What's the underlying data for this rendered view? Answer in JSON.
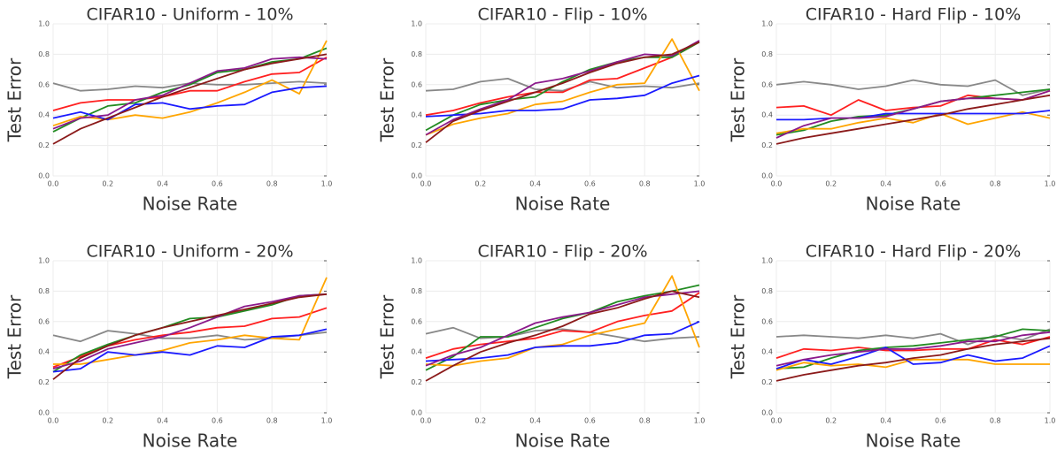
{
  "chart_data": [
    {
      "type": "line",
      "title": "CIFAR10 - Uniform - 10%",
      "xlabel": "Noise Rate",
      "ylabel": "Test Error",
      "x": [
        0,
        0.1,
        0.2,
        0.3,
        0.4,
        0.5,
        0.6,
        0.7,
        0.8,
        0.9,
        1.0
      ],
      "xlim": [
        0,
        1
      ],
      "ylim": [
        0,
        1
      ],
      "grid": true,
      "xticks": [
        {
          "value": 0,
          "label": "0.0"
        },
        {
          "value": 0.2,
          "label": "0.2"
        },
        {
          "value": 0.4,
          "label": "0.4"
        },
        {
          "value": 0.6,
          "label": "0.6"
        },
        {
          "value": 0.8,
          "label": "0.8"
        },
        {
          "value": 1,
          "label": "1.0"
        }
      ],
      "yticks": [
        {
          "value": 0,
          "label": "0.0"
        },
        {
          "value": 0.2,
          "label": "0.2"
        },
        {
          "value": 0.4,
          "label": "0.4"
        },
        {
          "value": 0.6,
          "label": "0.6"
        },
        {
          "value": 0.8,
          "label": "0.8"
        },
        {
          "value": 1,
          "label": "1.0"
        }
      ],
      "series": [
        {
          "color": "#888888",
          "values": [
            0.61,
            0.56,
            0.57,
            0.59,
            0.58,
            0.61,
            0.6,
            0.6,
            0.61,
            0.62,
            0.61
          ]
        },
        {
          "color": "#ff2020",
          "values": [
            0.43,
            0.48,
            0.5,
            0.5,
            0.52,
            0.56,
            0.56,
            0.62,
            0.67,
            0.68,
            0.78
          ]
        },
        {
          "color": "#228b22",
          "values": [
            0.29,
            0.38,
            0.46,
            0.48,
            0.55,
            0.6,
            0.68,
            0.7,
            0.75,
            0.77,
            0.84
          ]
        },
        {
          "color": "#ffa500",
          "values": [
            0.33,
            0.39,
            0.37,
            0.4,
            0.38,
            0.42,
            0.48,
            0.55,
            0.63,
            0.54,
            0.89
          ]
        },
        {
          "color": "#1a1aff",
          "values": [
            0.38,
            0.42,
            0.37,
            0.47,
            0.48,
            0.44,
            0.46,
            0.47,
            0.55,
            0.58,
            0.59
          ]
        },
        {
          "color": "#8b1a8b",
          "values": [
            0.31,
            0.38,
            0.4,
            0.5,
            0.53,
            0.61,
            0.69,
            0.71,
            0.77,
            0.78,
            0.77
          ]
        },
        {
          "color": "#8b1a1a",
          "values": [
            0.21,
            0.31,
            0.38,
            0.45,
            0.52,
            0.58,
            0.64,
            0.7,
            0.74,
            0.77,
            0.8
          ]
        }
      ]
    },
    {
      "type": "line",
      "title": "CIFAR10 - Flip - 10%",
      "xlabel": "Noise Rate",
      "ylabel": "Test Error",
      "x": [
        0,
        0.1,
        0.2,
        0.3,
        0.4,
        0.5,
        0.6,
        0.7,
        0.8,
        0.9,
        1.0
      ],
      "xlim": [
        0,
        1
      ],
      "ylim": [
        0,
        1
      ],
      "grid": true,
      "xticks": [
        {
          "value": 0,
          "label": "0.0"
        },
        {
          "value": 0.2,
          "label": "0.2"
        },
        {
          "value": 0.4,
          "label": "0.4"
        },
        {
          "value": 0.6,
          "label": "0.6"
        },
        {
          "value": 0.8,
          "label": "0.8"
        },
        {
          "value": 1,
          "label": "1.0"
        }
      ],
      "yticks": [
        {
          "value": 0,
          "label": "0.0"
        },
        {
          "value": 0.2,
          "label": "0.2"
        },
        {
          "value": 0.4,
          "label": "0.4"
        },
        {
          "value": 0.6,
          "label": "0.6"
        },
        {
          "value": 0.8,
          "label": "0.8"
        },
        {
          "value": 1,
          "label": "1.0"
        }
      ],
      "series": [
        {
          "color": "#888888",
          "values": [
            0.56,
            0.57,
            0.62,
            0.64,
            0.57,
            0.56,
            0.62,
            0.58,
            0.59,
            0.58,
            0.61
          ]
        },
        {
          "color": "#ff2020",
          "values": [
            0.4,
            0.43,
            0.48,
            0.52,
            0.55,
            0.55,
            0.63,
            0.64,
            0.71,
            0.78,
            0.88
          ]
        },
        {
          "color": "#228b22",
          "values": [
            0.3,
            0.4,
            0.47,
            0.5,
            0.52,
            0.62,
            0.7,
            0.75,
            0.78,
            0.78,
            0.88
          ]
        },
        {
          "color": "#ffa500",
          "values": [
            0.27,
            0.34,
            0.38,
            0.41,
            0.47,
            0.49,
            0.55,
            0.6,
            0.61,
            0.9,
            0.56
          ]
        },
        {
          "color": "#1a1aff",
          "values": [
            0.39,
            0.4,
            0.41,
            0.43,
            0.43,
            0.44,
            0.5,
            0.51,
            0.53,
            0.61,
            0.66
          ]
        },
        {
          "color": "#8b1a8b",
          "values": [
            0.27,
            0.37,
            0.44,
            0.5,
            0.61,
            0.64,
            0.69,
            0.75,
            0.8,
            0.79,
            0.89
          ]
        },
        {
          "color": "#8b1a1a",
          "values": [
            0.22,
            0.36,
            0.43,
            0.49,
            0.55,
            0.61,
            0.68,
            0.74,
            0.78,
            0.8,
            0.88
          ]
        }
      ]
    },
    {
      "type": "line",
      "title": "CIFAR10 - Hard Flip - 10%",
      "xlabel": "Noise Rate",
      "ylabel": "Test Error",
      "x": [
        0,
        0.1,
        0.2,
        0.3,
        0.4,
        0.5,
        0.6,
        0.7,
        0.8,
        0.9,
        1.0
      ],
      "xlim": [
        0,
        1
      ],
      "ylim": [
        0,
        1
      ],
      "grid": true,
      "xticks": [
        {
          "value": 0,
          "label": "0.0"
        },
        {
          "value": 0.2,
          "label": "0.2"
        },
        {
          "value": 0.4,
          "label": "0.4"
        },
        {
          "value": 0.6,
          "label": "0.6"
        },
        {
          "value": 0.8,
          "label": "0.8"
        },
        {
          "value": 1,
          "label": "1.0"
        }
      ],
      "yticks": [
        {
          "value": 0,
          "label": "0.0"
        },
        {
          "value": 0.2,
          "label": "0.2"
        },
        {
          "value": 0.4,
          "label": "0.4"
        },
        {
          "value": 0.6,
          "label": "0.6"
        },
        {
          "value": 0.8,
          "label": "0.8"
        },
        {
          "value": 1,
          "label": "1.0"
        }
      ],
      "series": [
        {
          "color": "#888888",
          "values": [
            0.6,
            0.62,
            0.6,
            0.57,
            0.59,
            0.63,
            0.6,
            0.59,
            0.63,
            0.53,
            0.57
          ]
        },
        {
          "color": "#ff2020",
          "values": [
            0.45,
            0.46,
            0.4,
            0.5,
            0.43,
            0.45,
            0.46,
            0.53,
            0.51,
            0.5,
            0.56
          ]
        },
        {
          "color": "#228b22",
          "values": [
            0.27,
            0.3,
            0.36,
            0.39,
            0.4,
            0.44,
            0.49,
            0.51,
            0.53,
            0.55,
            0.57
          ]
        },
        {
          "color": "#ffa500",
          "values": [
            0.28,
            0.31,
            0.31,
            0.35,
            0.38,
            0.35,
            0.41,
            0.34,
            0.38,
            0.42,
            0.38
          ]
        },
        {
          "color": "#1a1aff",
          "values": [
            0.37,
            0.37,
            0.38,
            0.38,
            0.41,
            0.41,
            0.41,
            0.41,
            0.41,
            0.41,
            0.43
          ]
        },
        {
          "color": "#8b1a8b",
          "values": [
            0.25,
            0.33,
            0.38,
            0.38,
            0.39,
            0.44,
            0.49,
            0.51,
            0.51,
            0.5,
            0.56
          ]
        },
        {
          "color": "#8b1a1a",
          "values": [
            0.21,
            0.25,
            0.28,
            0.31,
            0.34,
            0.37,
            0.4,
            0.44,
            0.47,
            0.5,
            0.53
          ]
        }
      ]
    },
    {
      "type": "line",
      "title": "CIFAR10 - Uniform - 20%",
      "xlabel": "Noise Rate",
      "ylabel": "Test Error",
      "x": [
        0,
        0.1,
        0.2,
        0.3,
        0.4,
        0.5,
        0.6,
        0.7,
        0.8,
        0.9,
        1.0
      ],
      "xlim": [
        0,
        1
      ],
      "ylim": [
        0,
        1
      ],
      "grid": true,
      "xticks": [
        {
          "value": 0,
          "label": "0.0"
        },
        {
          "value": 0.2,
          "label": "0.2"
        },
        {
          "value": 0.4,
          "label": "0.4"
        },
        {
          "value": 0.6,
          "label": "0.6"
        },
        {
          "value": 0.8,
          "label": "0.8"
        },
        {
          "value": 1,
          "label": "1.0"
        }
      ],
      "yticks": [
        {
          "value": 0,
          "label": "0.0"
        },
        {
          "value": 0.2,
          "label": "0.2"
        },
        {
          "value": 0.4,
          "label": "0.4"
        },
        {
          "value": 0.6,
          "label": "0.6"
        },
        {
          "value": 0.8,
          "label": "0.8"
        },
        {
          "value": 1,
          "label": "1.0"
        }
      ],
      "series": [
        {
          "color": "#888888",
          "values": [
            0.51,
            0.47,
            0.54,
            0.52,
            0.49,
            0.49,
            0.51,
            0.48,
            0.49,
            0.51,
            0.53
          ]
        },
        {
          "color": "#ff2020",
          "values": [
            0.3,
            0.37,
            0.44,
            0.48,
            0.51,
            0.53,
            0.56,
            0.57,
            0.62,
            0.63,
            0.69
          ]
        },
        {
          "color": "#228b22",
          "values": [
            0.27,
            0.38,
            0.45,
            0.51,
            0.56,
            0.62,
            0.63,
            0.67,
            0.71,
            0.77,
            0.78
          ]
        },
        {
          "color": "#ffa500",
          "values": [
            0.32,
            0.32,
            0.35,
            0.38,
            0.41,
            0.46,
            0.48,
            0.51,
            0.49,
            0.48,
            0.89
          ]
        },
        {
          "color": "#1a1aff",
          "values": [
            0.27,
            0.29,
            0.4,
            0.38,
            0.4,
            0.38,
            0.44,
            0.43,
            0.5,
            0.51,
            0.55
          ]
        },
        {
          "color": "#8b1a8b",
          "values": [
            0.29,
            0.34,
            0.42,
            0.46,
            0.5,
            0.56,
            0.63,
            0.7,
            0.73,
            0.77,
            0.78
          ]
        },
        {
          "color": "#8b1a1a",
          "values": [
            0.22,
            0.36,
            0.44,
            0.51,
            0.56,
            0.6,
            0.64,
            0.68,
            0.72,
            0.76,
            0.78
          ]
        }
      ]
    },
    {
      "type": "line",
      "title": "CIFAR10 - Flip - 20%",
      "xlabel": "Noise Rate",
      "ylabel": "Test Error",
      "x": [
        0,
        0.1,
        0.2,
        0.3,
        0.4,
        0.5,
        0.6,
        0.7,
        0.8,
        0.9,
        1.0
      ],
      "xlim": [
        0,
        1
      ],
      "ylim": [
        0,
        1
      ],
      "grid": true,
      "xticks": [
        {
          "value": 0,
          "label": "0.0"
        },
        {
          "value": 0.2,
          "label": "0.2"
        },
        {
          "value": 0.4,
          "label": "0.4"
        },
        {
          "value": 0.6,
          "label": "0.6"
        },
        {
          "value": 0.8,
          "label": "0.8"
        },
        {
          "value": 1,
          "label": "1.0"
        }
      ],
      "yticks": [
        {
          "value": 0,
          "label": "0.0"
        },
        {
          "value": 0.2,
          "label": "0.2"
        },
        {
          "value": 0.4,
          "label": "0.4"
        },
        {
          "value": 0.6,
          "label": "0.6"
        },
        {
          "value": 0.8,
          "label": "0.8"
        },
        {
          "value": 1,
          "label": "1.0"
        }
      ],
      "series": [
        {
          "color": "#888888",
          "values": [
            0.52,
            0.56,
            0.49,
            0.5,
            0.54,
            0.55,
            0.53,
            0.5,
            0.47,
            0.49,
            0.5
          ]
        },
        {
          "color": "#ff2020",
          "values": [
            0.36,
            0.42,
            0.45,
            0.47,
            0.49,
            0.54,
            0.53,
            0.6,
            0.64,
            0.67,
            0.79
          ]
        },
        {
          "color": "#228b22",
          "values": [
            0.28,
            0.37,
            0.5,
            0.5,
            0.56,
            0.62,
            0.66,
            0.73,
            0.77,
            0.8,
            0.84
          ]
        },
        {
          "color": "#ffa500",
          "values": [
            0.32,
            0.31,
            0.34,
            0.36,
            0.43,
            0.45,
            0.51,
            0.55,
            0.59,
            0.9,
            0.43
          ]
        },
        {
          "color": "#1a1aff",
          "values": [
            0.34,
            0.35,
            0.36,
            0.38,
            0.43,
            0.44,
            0.44,
            0.46,
            0.51,
            0.52,
            0.6
          ]
        },
        {
          "color": "#8b1a8b",
          "values": [
            0.31,
            0.38,
            0.43,
            0.51,
            0.59,
            0.63,
            0.66,
            0.71,
            0.76,
            0.78,
            0.8
          ]
        },
        {
          "color": "#8b1a1a",
          "values": [
            0.21,
            0.31,
            0.4,
            0.46,
            0.51,
            0.57,
            0.65,
            0.69,
            0.75,
            0.8,
            0.76
          ]
        }
      ]
    },
    {
      "type": "line",
      "title": "CIFAR10 - Hard Flip - 20%",
      "xlabel": "Noise Rate",
      "ylabel": "Test Error",
      "x": [
        0,
        0.1,
        0.2,
        0.3,
        0.4,
        0.5,
        0.6,
        0.7,
        0.8,
        0.9,
        1.0
      ],
      "xlim": [
        0,
        1
      ],
      "ylim": [
        0,
        1
      ],
      "grid": true,
      "xticks": [
        {
          "value": 0,
          "label": "0.0"
        },
        {
          "value": 0.2,
          "label": "0.2"
        },
        {
          "value": 0.4,
          "label": "0.4"
        },
        {
          "value": 0.6,
          "label": "0.6"
        },
        {
          "value": 0.8,
          "label": "0.8"
        },
        {
          "value": 1,
          "label": "1.0"
        }
      ],
      "yticks": [
        {
          "value": 0,
          "label": "0.0"
        },
        {
          "value": 0.2,
          "label": "0.2"
        },
        {
          "value": 0.4,
          "label": "0.4"
        },
        {
          "value": 0.6,
          "label": "0.6"
        },
        {
          "value": 0.8,
          "label": "0.8"
        },
        {
          "value": 1,
          "label": "1.0"
        }
      ],
      "series": [
        {
          "color": "#888888",
          "values": [
            0.5,
            0.51,
            0.5,
            0.49,
            0.51,
            0.49,
            0.52,
            0.45,
            0.51,
            0.48,
            0.55
          ]
        },
        {
          "color": "#ff2020",
          "values": [
            0.36,
            0.42,
            0.41,
            0.43,
            0.41,
            0.41,
            0.42,
            0.42,
            0.48,
            0.45,
            0.5
          ]
        },
        {
          "color": "#228b22",
          "values": [
            0.29,
            0.3,
            0.36,
            0.41,
            0.43,
            0.44,
            0.46,
            0.48,
            0.5,
            0.55,
            0.54
          ]
        },
        {
          "color": "#ffa500",
          "values": [
            0.28,
            0.33,
            0.31,
            0.32,
            0.3,
            0.35,
            0.35,
            0.35,
            0.32,
            0.32,
            0.32
          ]
        },
        {
          "color": "#1a1aff",
          "values": [
            0.29,
            0.35,
            0.32,
            0.37,
            0.43,
            0.32,
            0.33,
            0.38,
            0.34,
            0.36,
            0.44
          ]
        },
        {
          "color": "#8b1a8b",
          "values": [
            0.31,
            0.35,
            0.38,
            0.4,
            0.42,
            0.42,
            0.44,
            0.47,
            0.47,
            0.51,
            0.53
          ]
        },
        {
          "color": "#8b1a1a",
          "values": [
            0.21,
            0.25,
            0.28,
            0.31,
            0.33,
            0.36,
            0.38,
            0.42,
            0.45,
            0.47,
            0.49
          ]
        }
      ]
    }
  ]
}
